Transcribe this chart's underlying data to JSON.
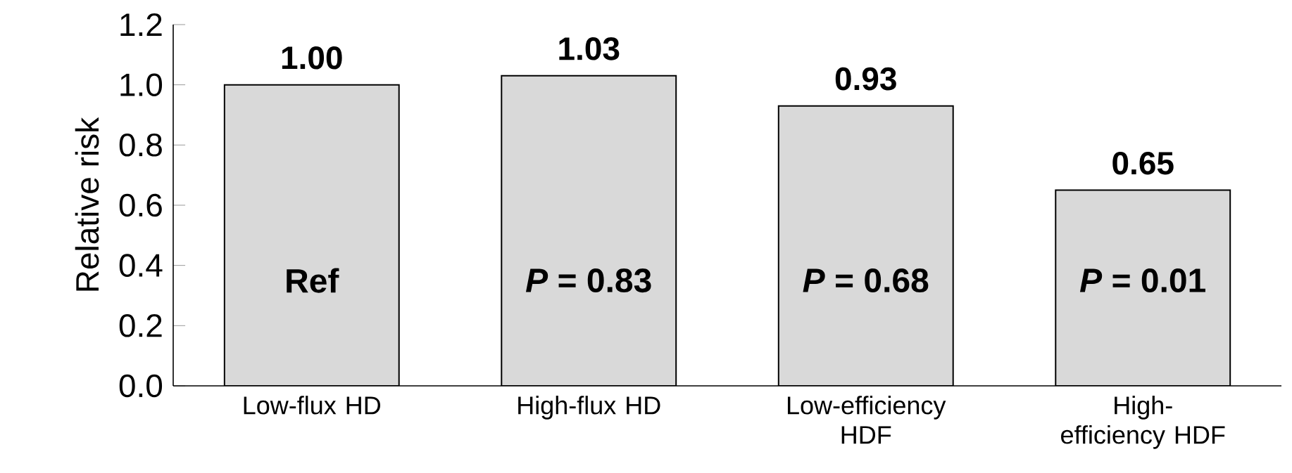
{
  "chart_data": {
    "type": "bar",
    "ylabel": "Relative risk",
    "categories": [
      "Low-flux HD",
      "High-flux HD",
      "Low-efficiency HDF",
      "High-efficiency HDF"
    ],
    "values": [
      1.0,
      1.03,
      0.93,
      0.65
    ],
    "value_labels": [
      "1.00",
      "1.03",
      "0.93",
      "0.65"
    ],
    "color": "#d9d9d9",
    "ylim": [
      0,
      1.2
    ],
    "yticks": [
      {
        "value": 0,
        "label": "0.0"
      },
      {
        "value": 0.2,
        "label": "0.2"
      },
      {
        "value": 0.4,
        "label": "0.4"
      },
      {
        "value": 0.6,
        "label": "0.6"
      },
      {
        "value": 0.8,
        "label": "0.8"
      },
      {
        "value": 1.0,
        "label": "1.0"
      },
      {
        "value": 1.2,
        "label": "1.2"
      }
    ],
    "annotations": [
      "Ref",
      "*P* = 0.83",
      "*P* = 0.68",
      "*P* = 0.01"
    ]
  }
}
